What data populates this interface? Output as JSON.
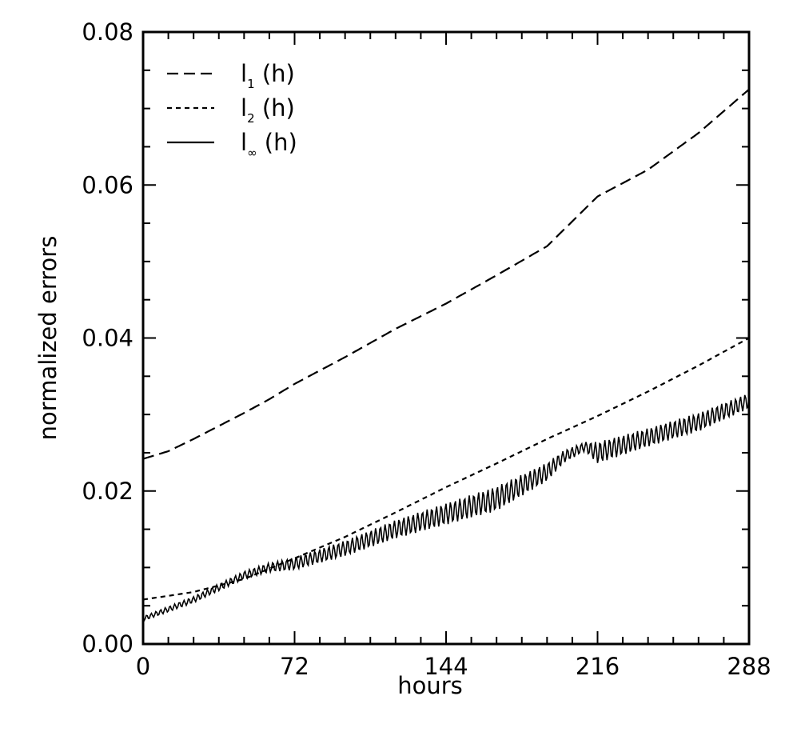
{
  "chart_data": {
    "type": "line",
    "title": "",
    "xlabel": "hours",
    "ylabel": "normalized errors",
    "xlim": [
      0,
      288
    ],
    "ylim": [
      0.0,
      0.08
    ],
    "xticks": [
      0,
      72,
      144,
      216,
      288
    ],
    "xtick_labels": [
      "0",
      "72",
      "144",
      "216",
      "288"
    ],
    "yticks": [
      0.0,
      0.02,
      0.04,
      0.06,
      0.08
    ],
    "ytick_labels": [
      "0.00",
      "0.02",
      "0.04",
      "0.06",
      "0.08"
    ],
    "grid": false,
    "legend_position": "top-left",
    "series": [
      {
        "name": "l1 (h)",
        "legend_main": "l",
        "legend_sub": "1",
        "legend_rest": " (h)",
        "style": "long-dash",
        "x": [
          0,
          12,
          24,
          36,
          48,
          60,
          72,
          96,
          120,
          144,
          168,
          192,
          216,
          240,
          264,
          288
        ],
        "y": [
          0.0242,
          0.0252,
          0.0268,
          0.0285,
          0.0302,
          0.032,
          0.034,
          0.0375,
          0.0412,
          0.0445,
          0.0482,
          0.052,
          0.0585,
          0.062,
          0.0668,
          0.0725
        ]
      },
      {
        "name": "l2 (h)",
        "legend_main": "l",
        "legend_sub": "2",
        "legend_rest": " (h)",
        "style": "short-dash",
        "x": [
          0,
          24,
          48,
          72,
          96,
          120,
          144,
          168,
          192,
          216,
          240,
          264,
          288
        ],
        "y": [
          0.0058,
          0.0068,
          0.0085,
          0.0112,
          0.014,
          0.0172,
          0.0205,
          0.0236,
          0.0268,
          0.0298,
          0.033,
          0.0364,
          0.04
        ]
      },
      {
        "name": "l∞ (h)",
        "legend_main": "l",
        "legend_sub": "∞",
        "legend_rest": " (h)",
        "style": "solid-oscillating",
        "x": [
          0,
          24,
          48,
          60,
          72,
          96,
          120,
          144,
          168,
          192,
          200,
          210,
          216,
          240,
          264,
          288
        ],
        "y": [
          0.0033,
          0.0058,
          0.009,
          0.01,
          0.0105,
          0.0125,
          0.015,
          0.017,
          0.019,
          0.0225,
          0.0245,
          0.0258,
          0.025,
          0.027,
          0.029,
          0.0318
        ],
        "oscillation_amplitude": [
          0.0003,
          0.0004,
          0.0005,
          0.0006,
          0.0008,
          0.001,
          0.0012,
          0.0014,
          0.0016,
          0.0012,
          0.0008,
          0.0006,
          0.0014,
          0.0012,
          0.0012,
          0.001
        ]
      }
    ]
  }
}
